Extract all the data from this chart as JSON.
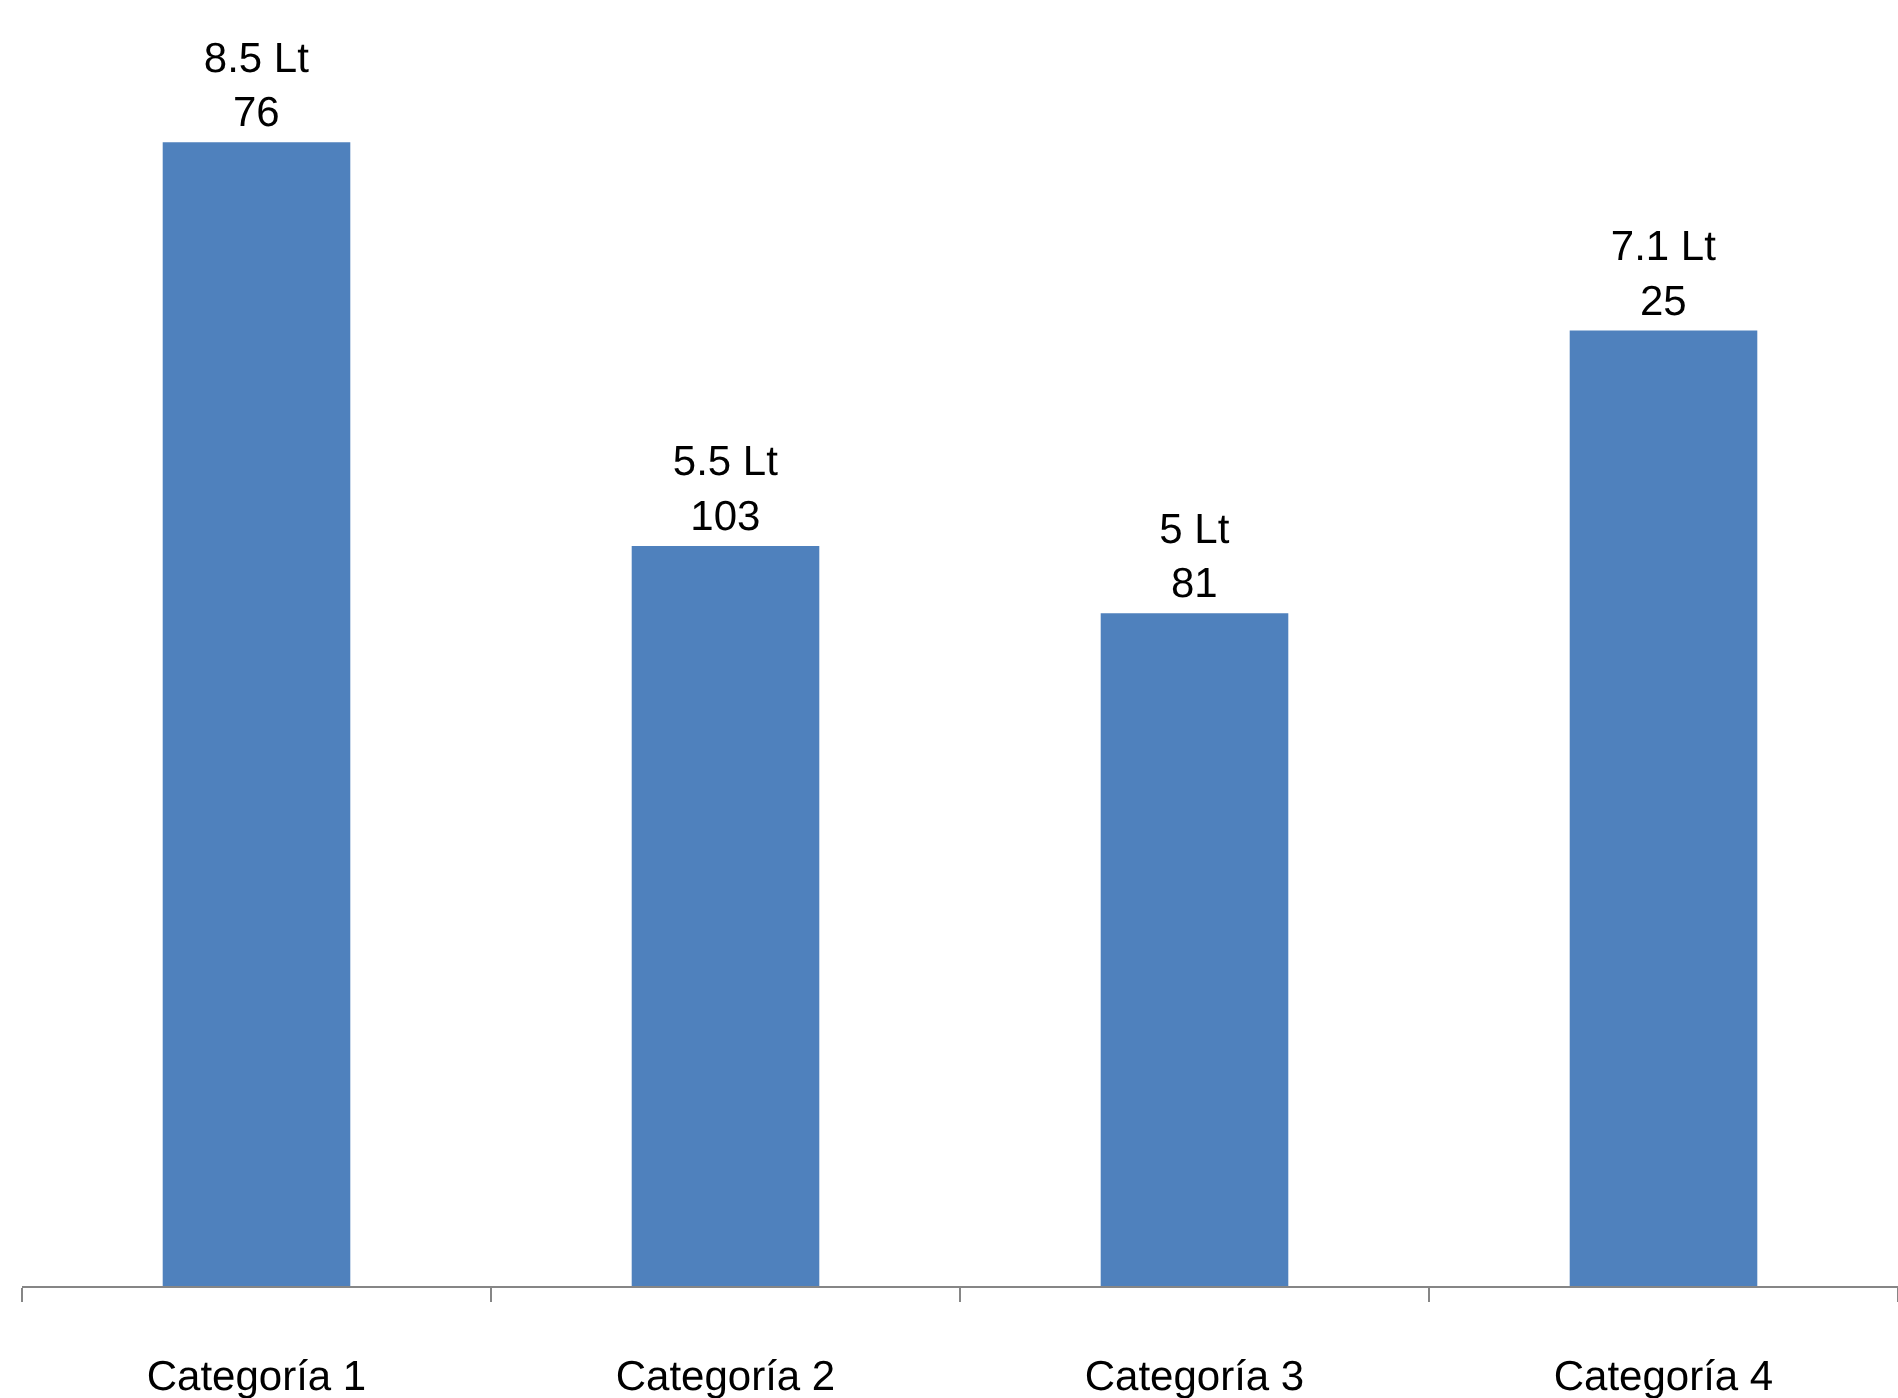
{
  "chart_data": {
    "type": "bar",
    "categories": [
      "Categoría 1",
      "Categoría 2",
      "Categoría 3",
      "Categoría 4"
    ],
    "values": [
      8.5,
      5.5,
      5,
      7.1
    ],
    "value_labels": [
      "8.5 Lt\n76",
      "5.5 Lt\n103",
      "5 Lt\n81",
      "7.1 Lt\n25"
    ],
    "color": "#4f81bd",
    "tick_labels": "x"
  }
}
